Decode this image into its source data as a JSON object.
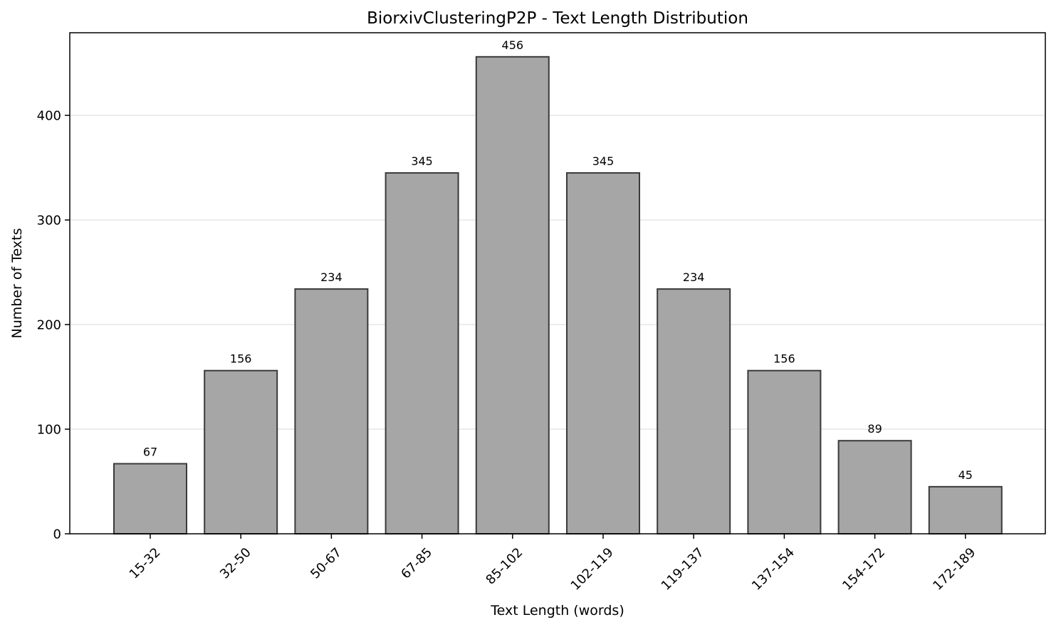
{
  "chart_data": {
    "type": "bar",
    "title": "BiorxivClusteringP2P - Text Length Distribution",
    "xlabel": "Text Length (words)",
    "ylabel": "Number of Texts",
    "categories": [
      "15-32",
      "32-50",
      "50-67",
      "67-85",
      "85-102",
      "102-119",
      "119-137",
      "137-154",
      "154-172",
      "172-189"
    ],
    "values": [
      67,
      156,
      234,
      345,
      456,
      345,
      234,
      156,
      89,
      45
    ],
    "value_labels": [
      "67",
      "156",
      "234",
      "345",
      "456",
      "345",
      "234",
      "156",
      "89",
      "45"
    ],
    "ylim": [
      0,
      479
    ],
    "yticks": [
      0,
      100,
      200,
      300,
      400
    ],
    "ytick_labels": [
      "0",
      "100",
      "200",
      "300",
      "400"
    ],
    "grid": "y-major",
    "legend": "none",
    "colors": {
      "bar_fill": "#a6a6a6",
      "bar_edge": "#3a3a3a",
      "grid": "#e6e6e6",
      "axes": "#000000"
    }
  }
}
